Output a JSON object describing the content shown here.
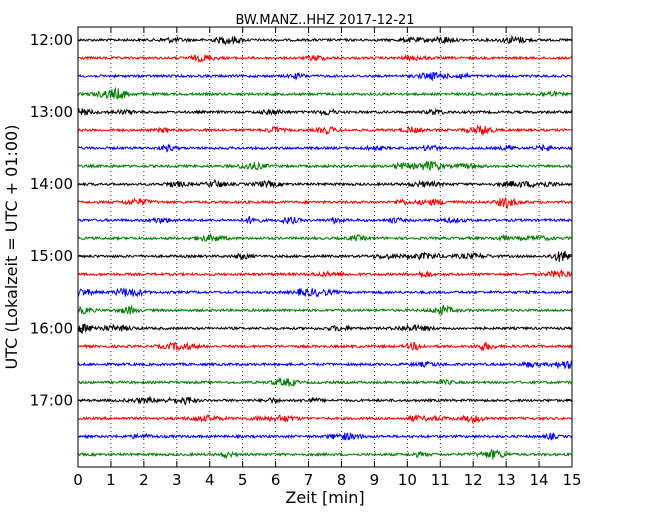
{
  "chart_data": {
    "type": "line",
    "title": "BW.MANZ..HHZ 2017-12-21",
    "xlabel": "Zeit  [min]",
    "ylabel": "UTC (Lokalzeit = UTC + 01:00)",
    "xlim": [
      0,
      15
    ],
    "x_ticks": [
      0,
      1,
      2,
      3,
      4,
      5,
      6,
      7,
      8,
      9,
      10,
      11,
      12,
      13,
      14,
      15
    ],
    "y_ticks": [
      "12:00",
      "13:00",
      "14:00",
      "15:00",
      "16:00",
      "17:00"
    ],
    "grid": {
      "x": true,
      "y": false
    },
    "trace_colors": [
      "#000000",
      "#ff0000",
      "#0000ff",
      "#007f00"
    ],
    "traces": [
      "12:00",
      "12:15",
      "12:30",
      "12:45",
      "13:00",
      "13:15",
      "13:30",
      "13:45",
      "14:00",
      "14:15",
      "14:30",
      "14:45",
      "15:00",
      "15:15",
      "15:30",
      "15:45",
      "16:00",
      "16:15",
      "16:30",
      "16:45",
      "17:00",
      "17:15",
      "17:30",
      "17:45"
    ]
  }
}
